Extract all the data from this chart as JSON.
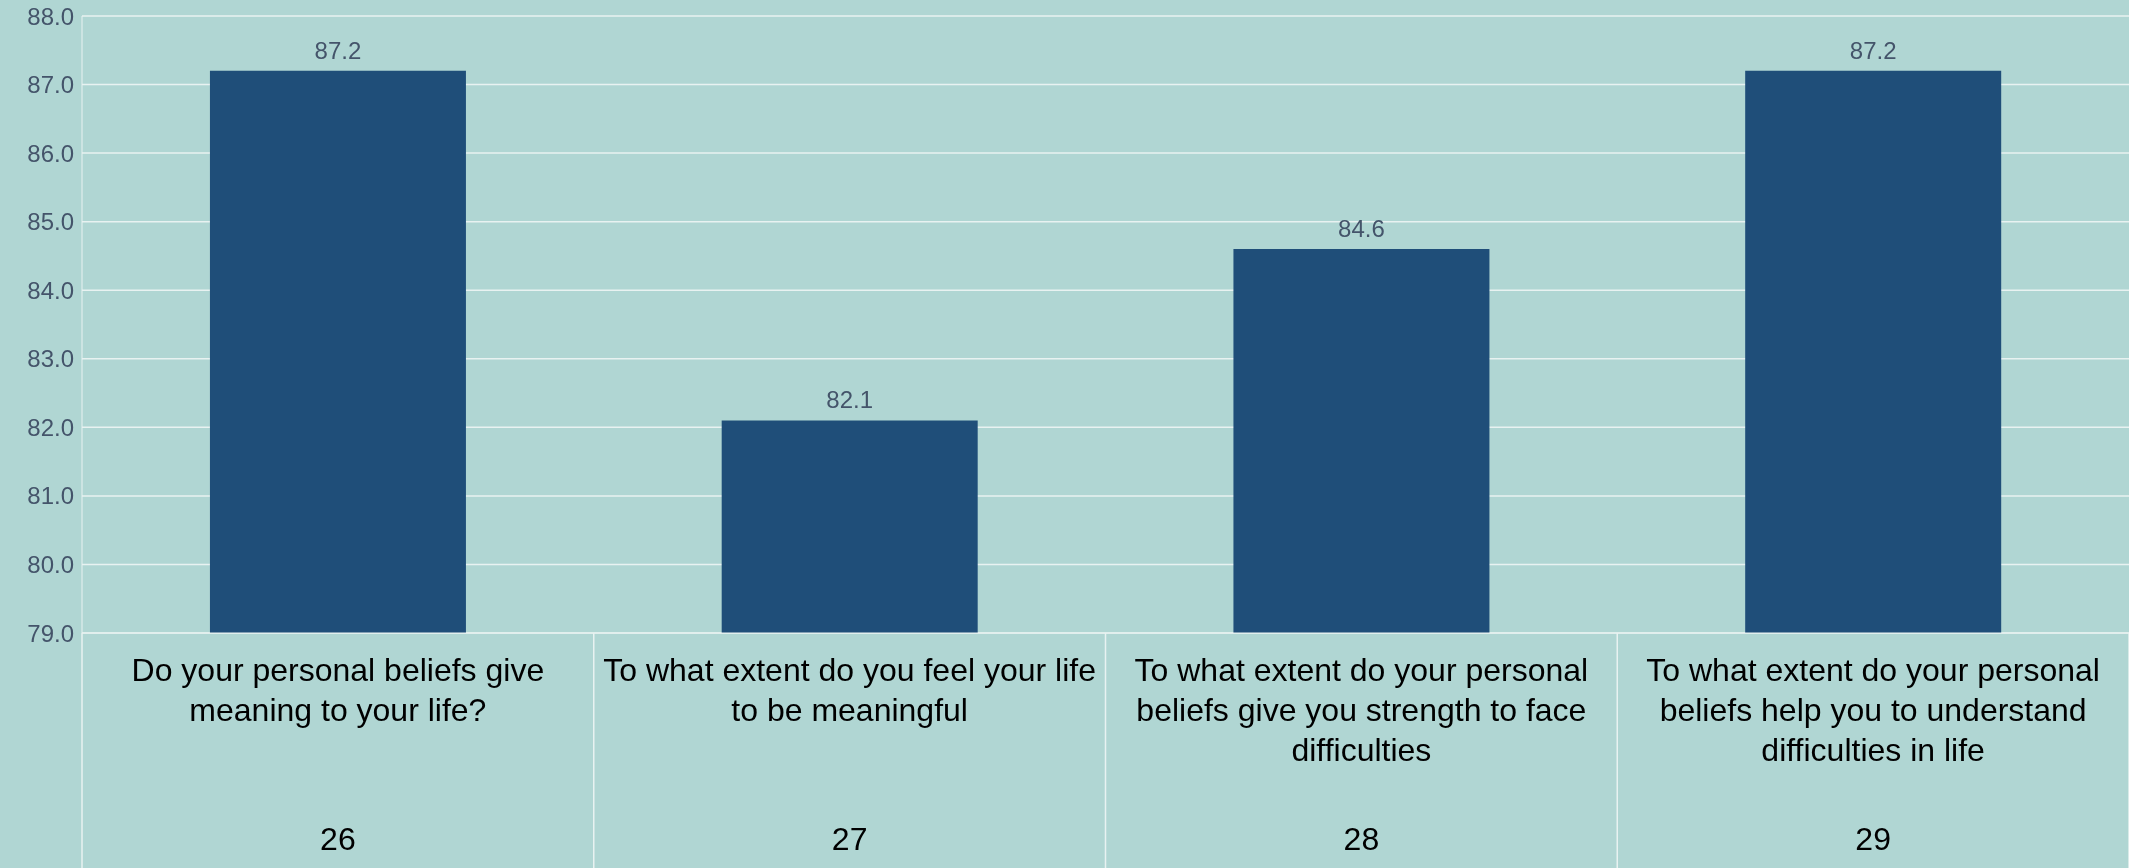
{
  "chart_data": {
    "type": "bar",
    "categories": [
      "Do your personal beliefs give meaning to your life?",
      "To what extent do you feel your life to be meaningful",
      "To what extent do your personal beliefs give you strength to face difficulties",
      "To what extent do your personal beliefs help you to understand difficulties in life"
    ],
    "values": [
      87.2,
      82.1,
      84.6,
      87.2
    ],
    "color": "#1f4e79",
    "ylim": [
      79,
      88
    ],
    "yticks": [
      {
        "value": 79,
        "label": "79.0"
      },
      {
        "value": 80,
        "label": "80.0"
      },
      {
        "value": 81,
        "label": "81.0"
      },
      {
        "value": 82,
        "label": "82.0"
      },
      {
        "value": 83,
        "label": "83.0"
      },
      {
        "value": 84,
        "label": "84.0"
      },
      {
        "value": 85,
        "label": "85.0"
      },
      {
        "value": 86,
        "label": "86.0"
      },
      {
        "value": 87,
        "label": "87.0"
      },
      {
        "value": 88,
        "label": "88.0"
      }
    ],
    "grid": "y",
    "data_labels": true,
    "annotations": [
      "26",
      "27",
      "28",
      "29"
    ]
  }
}
